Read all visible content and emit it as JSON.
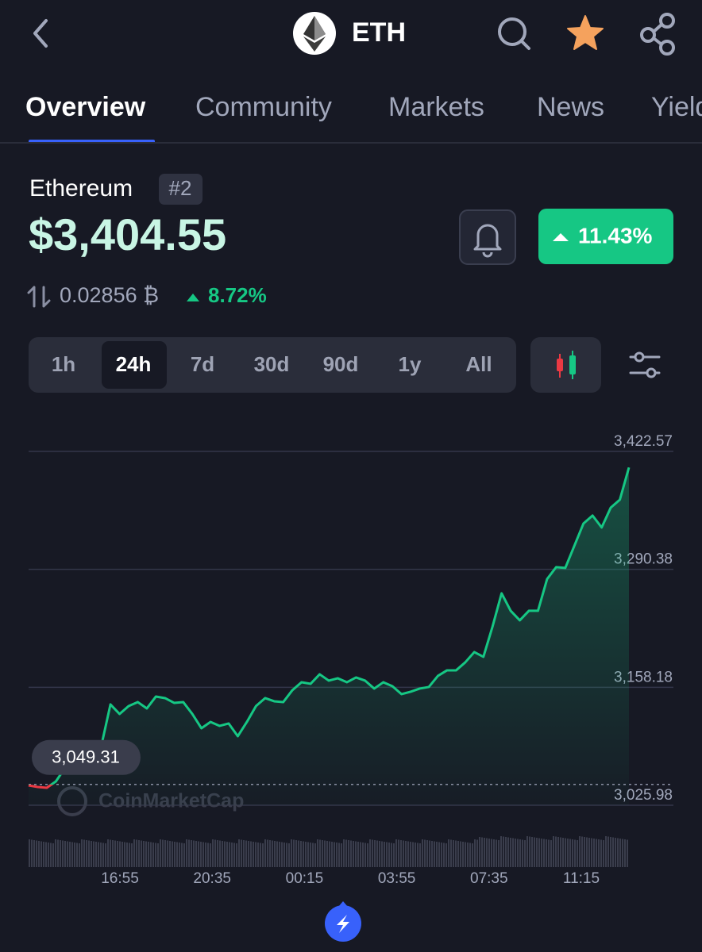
{
  "header": {
    "title": "ETH"
  },
  "tabs": [
    "Overview",
    "Community",
    "Markets",
    "News",
    "Yield"
  ],
  "coin": {
    "name": "Ethereum",
    "rank": "#2",
    "price": "$3,404.55",
    "btc_price": "0.02856 ₿",
    "btc_change": "8.72%",
    "change_24h": "11.43%"
  },
  "timeframes": [
    "1h",
    "24h",
    "7d",
    "30d",
    "90d",
    "1y",
    "All"
  ],
  "chart_data": {
    "type": "line",
    "color": "#16c784",
    "below_color": "#ea3943",
    "values": [
      3048.22,
      3046.44,
      3045.55,
      3052.67,
      3067.79,
      3073.12,
      3085.58,
      3090.91,
      3092.69,
      3138.95,
      3128.27,
      3137.17,
      3141.62,
      3134.5,
      3147.84,
      3146.06,
      3140.73,
      3141.62,
      3128.27,
      3112.26,
      3119.38,
      3114.93,
      3117.6,
      3103.37,
      3119.38,
      3137.17,
      3146.06,
      3142.5,
      3141.62,
      3154.96,
      3163.85,
      3162.07,
      3172.75,
      3165.63,
      3168.3,
      3163.85,
      3169.19,
      3165.63,
      3156.74,
      3163.85,
      3159.41,
      3150.51,
      3153.18,
      3156.74,
      3158.52,
      3170.97,
      3177.2,
      3177.2,
      3186.09,
      3197.65,
      3192.32,
      3226.12,
      3263.48,
      3243.91,
      3233.23,
      3243.91,
      3243.91,
      3279.49,
      3292.83,
      3291.94,
      3316.85,
      3341.75,
      3350.65,
      3337.31,
      3359.54,
      3368.44,
      3404.55
    ],
    "ylim": [
      3025.98,
      3422.57
    ],
    "yticks": [
      {
        "value": 3025.98,
        "label": "3,025.98"
      },
      {
        "value": 3158.18,
        "label": "3,158.18"
      },
      {
        "value": 3290.38,
        "label": "3,290.38"
      },
      {
        "value": 3422.57,
        "label": "3,422.57"
      }
    ],
    "x_labels": [
      "16:55",
      "20:35",
      "00:15",
      "03:55",
      "07:35",
      "11:15"
    ],
    "reference": {
      "value": 3049.31,
      "label": "3,049.31"
    },
    "watermark": "CoinMarketCap"
  }
}
